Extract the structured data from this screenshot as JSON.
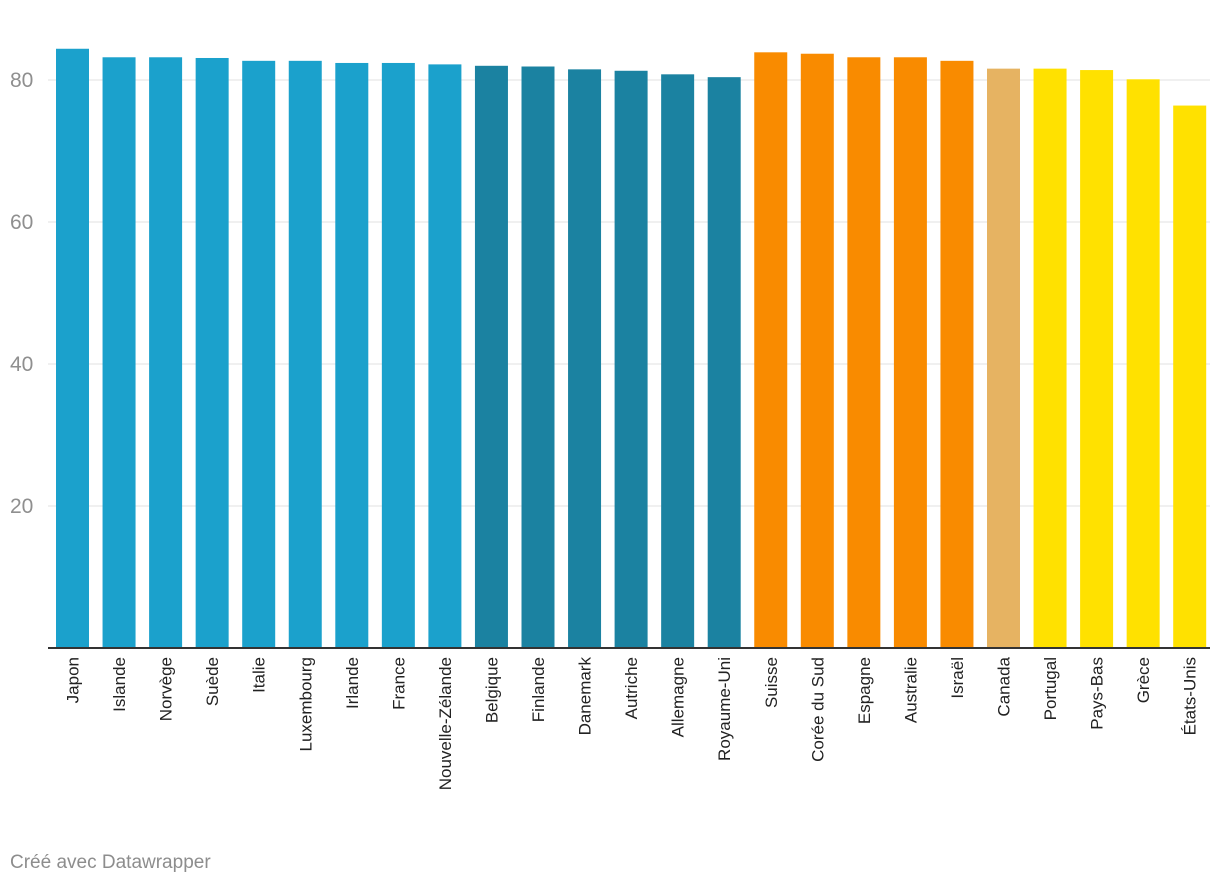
{
  "chart_data": {
    "type": "bar",
    "title": "",
    "xlabel": "",
    "ylabel": "",
    "ylim": [
      0,
      85
    ],
    "yticks": [
      20,
      40,
      60,
      80
    ],
    "grid": true,
    "categories": [
      "Japon",
      "Islande",
      "Norvège",
      "Suède",
      "Italie",
      "Luxembourg",
      "Irlande",
      "France",
      "Nouvelle-Zélande",
      "Belgique",
      "Finlande",
      "Danemark",
      "Autriche",
      "Allemagne",
      "Royaume-Uni",
      "Suisse",
      "Corée du Sud",
      "Espagne",
      "Australie",
      "Israël",
      "Canada",
      "Portugal",
      "Pays-Bas",
      "Grèce",
      "États-Unis"
    ],
    "values": [
      84.4,
      83.2,
      83.2,
      83.1,
      82.7,
      82.7,
      82.4,
      82.4,
      82.2,
      82.0,
      81.9,
      81.5,
      81.3,
      80.8,
      80.4,
      83.9,
      83.7,
      83.2,
      83.2,
      82.7,
      81.6,
      81.6,
      81.4,
      80.1,
      76.4
    ],
    "colors": [
      "#1ba1cc",
      "#1ba1cc",
      "#1ba1cc",
      "#1ba1cc",
      "#1ba1cc",
      "#1ba1cc",
      "#1ba1cc",
      "#1ba1cc",
      "#1ba1cc",
      "#1b82a1",
      "#1b82a1",
      "#1b82a1",
      "#1b82a1",
      "#1b82a1",
      "#1b82a1",
      "#f98b00",
      "#f98b00",
      "#f98b00",
      "#f98b00",
      "#f98b00",
      "#e6b362",
      "#ffe100",
      "#ffe100",
      "#ffe100",
      "#ffe100"
    ]
  },
  "footer": {
    "credit": "Créé avec Datawrapper"
  }
}
